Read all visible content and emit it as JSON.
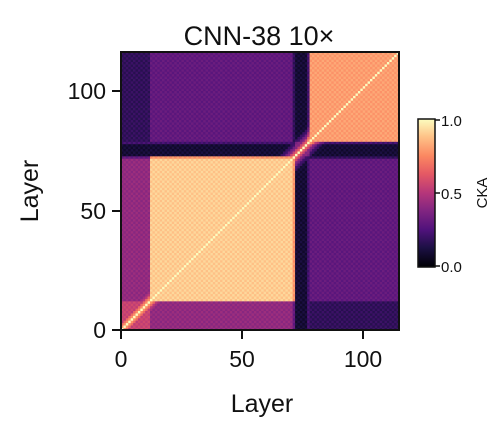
{
  "chart_data": {
    "type": "heatmap",
    "title": "CNN-38 10×",
    "xlabel": "Layer",
    "ylabel": "Layer",
    "xlim": [
      0,
      115
    ],
    "ylim": [
      0,
      115
    ],
    "xticks": [
      "0",
      "50",
      "100"
    ],
    "yticks": [
      "0",
      "50",
      "100"
    ],
    "grid": false,
    "n_layers": 115,
    "colormap": "magma",
    "colorbar": {
      "label": "CKA",
      "range": [
        0.0,
        1.0
      ],
      "ticks": [
        "0.0",
        "0.5",
        "1.0"
      ]
    },
    "blocks": [
      {
        "layers": [
          0,
          12
        ],
        "within_similarity": 0.55
      },
      {
        "layers": [
          12,
          72
        ],
        "within_similarity": 0.9
      },
      {
        "layers": [
          72,
          78
        ],
        "within_similarity": 0.5
      },
      {
        "layers": [
          78,
          115
        ],
        "within_similarity": 0.8
      }
    ],
    "between_block_similarity": [
      {
        "blocks": [
          0,
          1
        ],
        "value": 0.42
      },
      {
        "blocks": [
          1,
          3
        ],
        "value": 0.3
      },
      {
        "blocks": [
          0,
          3
        ],
        "value": 0.18
      }
    ],
    "diagonal_value": 1.0
  },
  "colors": {
    "background": "#ffffff",
    "axis": "#111111"
  }
}
